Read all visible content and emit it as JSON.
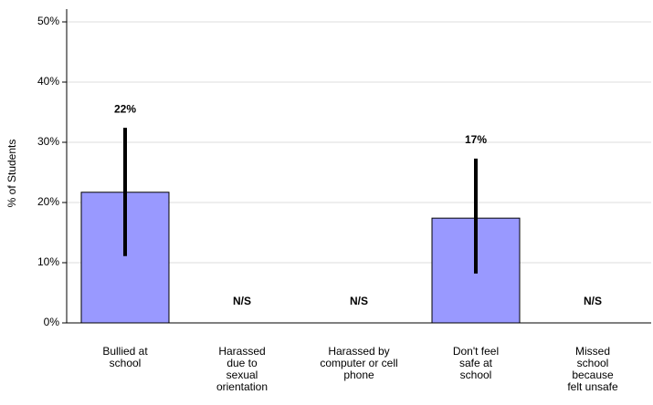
{
  "chart_data": {
    "type": "bar",
    "y_axis_label": "% of Students",
    "categories": [
      "Bullied at school",
      "Harassed due to sexual orientation",
      "Harassed by computer or cell phone",
      "Don't feel safe at school",
      "Missed school because felt unsafe"
    ],
    "values": [
      21.7,
      null,
      null,
      17.4,
      null
    ],
    "value_labels": [
      "22%",
      "N/S",
      "N/S",
      "17%",
      "N/S"
    ],
    "ci_low": [
      11.1,
      null,
      null,
      8.2,
      null
    ],
    "ci_high": [
      32.4,
      null,
      null,
      27.3,
      null
    ],
    "color": "#9999ff",
    "ylim": [
      0,
      50
    ],
    "yticks": [
      {
        "value": 0,
        "label": "0%"
      },
      {
        "value": 10,
        "label": "10%"
      },
      {
        "value": 20,
        "label": "20%"
      },
      {
        "value": 30,
        "label": "30%"
      },
      {
        "value": 40,
        "label": "40%"
      },
      {
        "value": 50,
        "label": "50%"
      }
    ],
    "grid": true
  }
}
